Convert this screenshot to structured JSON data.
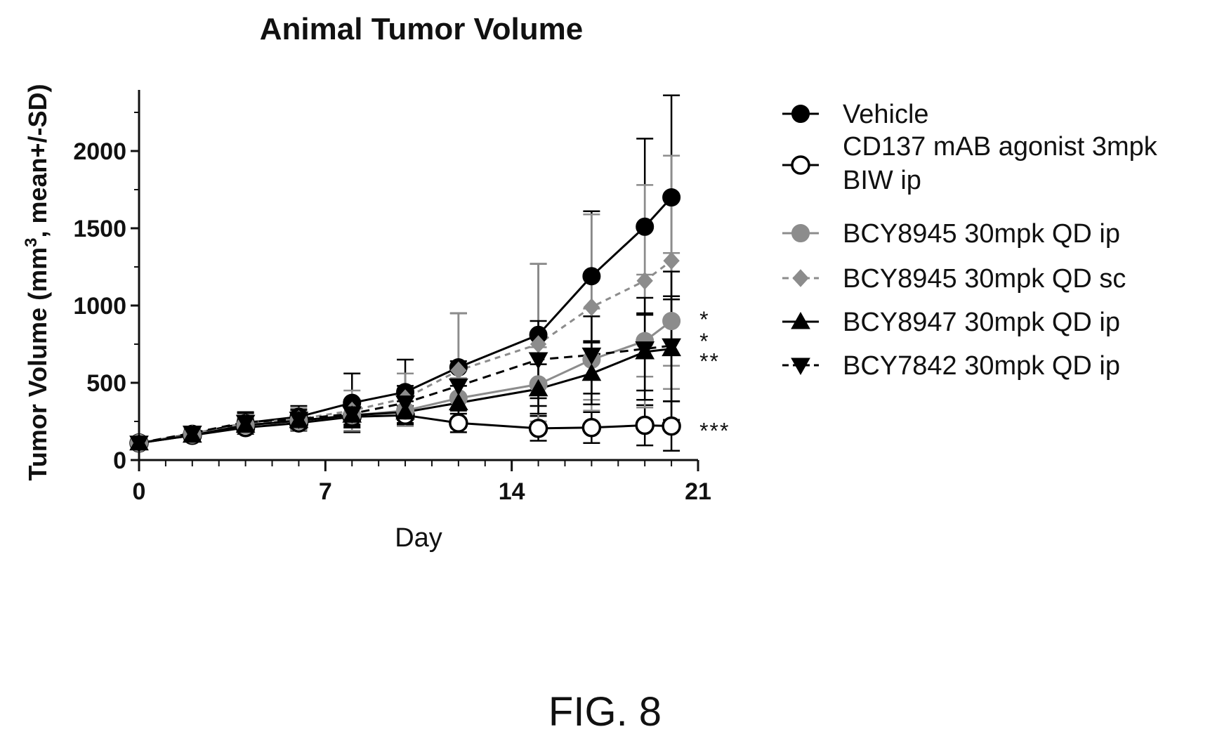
{
  "chart_data": {
    "type": "line",
    "title": "Animal Tumor Volume",
    "xlabel": "Day",
    "ylabel_main": "Tumor Volume (mm",
    "ylabel_sup": "3",
    "ylabel_tail": ", mean+/-SD)",
    "xlim": [
      0,
      21
    ],
    "ylim": [
      0,
      2400
    ],
    "xticks": [
      0,
      7,
      14,
      21
    ],
    "yticks": [
      0,
      500,
      1000,
      1500,
      2000
    ],
    "x": [
      0,
      2,
      4,
      6,
      8,
      10,
      12,
      15,
      17,
      19,
      20
    ],
    "series": [
      {
        "name": "Vehicle",
        "marker": "circle-filled",
        "color": "#000000",
        "dash": "none",
        "values": [
          110,
          170,
          240,
          280,
          370,
          440,
          600,
          810,
          1190,
          1510,
          1700
        ],
        "sd": [
          30,
          40,
          70,
          70,
          190,
          210,
          350,
          460,
          420,
          570,
          660
        ]
      },
      {
        "name": "CD137 mAB agonist 3mpk BIW ip",
        "marker": "circle-open",
        "color": "#000000",
        "dash": "none",
        "values": [
          110,
          160,
          210,
          240,
          280,
          290,
          240,
          205,
          210,
          225,
          220
        ],
        "sd": [
          25,
          30,
          40,
          50,
          60,
          60,
          60,
          80,
          100,
          130,
          160
        ]
      },
      {
        "name": "BCY8945 30mpk QD ip",
        "marker": "circle-filled",
        "color": "#8c8c8c",
        "dash": "none",
        "values": [
          110,
          165,
          225,
          255,
          290,
          320,
          400,
          490,
          650,
          770,
          900
        ],
        "sd": [
          25,
          35,
          50,
          60,
          80,
          100,
          130,
          240,
          330,
          430,
          440
        ]
      },
      {
        "name": "BCY8945 30mpk QD sc",
        "marker": "diamond",
        "color": "#8c8c8c",
        "dash": "8,7",
        "values": [
          110,
          170,
          240,
          265,
          320,
          400,
          580,
          750,
          990,
          1160,
          1290
        ],
        "sd": [
          30,
          40,
          60,
          70,
          130,
          160,
          370,
          520,
          600,
          620,
          680
        ]
      },
      {
        "name": "BCY8947 30mpk QD ip",
        "marker": "triangle-up",
        "color": "#000000",
        "dash": "none",
        "values": [
          110,
          160,
          225,
          255,
          290,
          310,
          370,
          460,
          560,
          700,
          720
        ],
        "sd": [
          25,
          30,
          40,
          50,
          60,
          70,
          110,
          160,
          200,
          250,
          340
        ]
      },
      {
        "name": "BCY7842 30mpk QD ip",
        "marker": "triangle-down",
        "color": "#000000",
        "dash": "12,8",
        "values": [
          110,
          175,
          245,
          265,
          300,
          370,
          480,
          650,
          680,
          720,
          740
        ],
        "sd": [
          25,
          35,
          60,
          60,
          90,
          110,
          160,
          250,
          250,
          330,
          480
        ]
      }
    ],
    "legend_labels": [
      [
        "Vehicle"
      ],
      [
        "CD137 mAB agonist 3mpk",
        "BIW ip"
      ],
      [
        "BCY8945 30mpk QD ip"
      ],
      [
        "BCY8945 30mpk QD sc"
      ],
      [
        "BCY8947 30mpk QD ip"
      ],
      [
        "BCY7842 30mpk QD ip"
      ]
    ],
    "legend_placement": "right",
    "annotations": [
      {
        "text": "*",
        "value": 940
      },
      {
        "text": "*",
        "value": 800
      },
      {
        "text": "**",
        "value": 670
      },
      {
        "text": "***",
        "value": 220
      }
    ],
    "grid": false
  },
  "figure_label": "FIG. 8"
}
